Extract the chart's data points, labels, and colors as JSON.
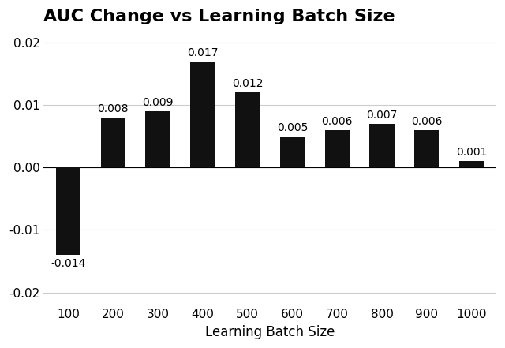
{
  "categories": [
    100,
    200,
    300,
    400,
    500,
    600,
    700,
    800,
    900,
    1000
  ],
  "values": [
    -0.014,
    0.008,
    0.009,
    0.017,
    0.012,
    0.005,
    0.006,
    0.007,
    0.006,
    0.001
  ],
  "labels": [
    "-0.014",
    "0.008",
    "0.009",
    "0.017",
    "0.012",
    "0.005",
    "0.006",
    "0.007",
    "0.006",
    "0.001"
  ],
  "bar_color": "#111111",
  "title": "AUC Change vs Learning Batch Size",
  "xlabel": "Learning Batch Size",
  "ylabel": "",
  "ylim": [
    -0.022,
    0.022
  ],
  "yticks": [
    -0.02,
    -0.01,
    0.0,
    0.01,
    0.02
  ],
  "title_fontsize": 16,
  "label_fontsize": 12,
  "tick_fontsize": 11,
  "annotation_fontsize": 10,
  "background_color": "#ffffff",
  "axes_background": "#ffffff",
  "grid_color": "#cccccc"
}
